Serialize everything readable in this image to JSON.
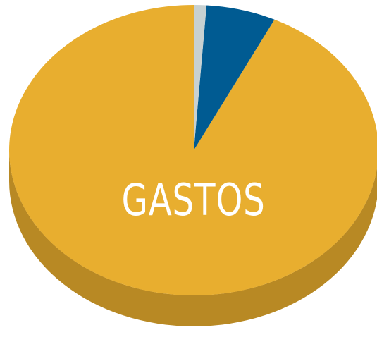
{
  "chart_data": {
    "type": "pie",
    "title": "",
    "center_label": "GASTOS",
    "style": "3d",
    "slices": [
      {
        "label": "",
        "value": 92.8,
        "color": "#E8AE2F",
        "side_color": "#B88924"
      },
      {
        "label": "",
        "value": 6.1,
        "color": "#005B92",
        "side_color": "#004A77"
      },
      {
        "label": "",
        "value": 1.1,
        "color": "#C7D1D2",
        "side_color": "#9FA8A9"
      }
    ],
    "start_angle_deg": 0,
    "direction": "counterclockwise"
  }
}
